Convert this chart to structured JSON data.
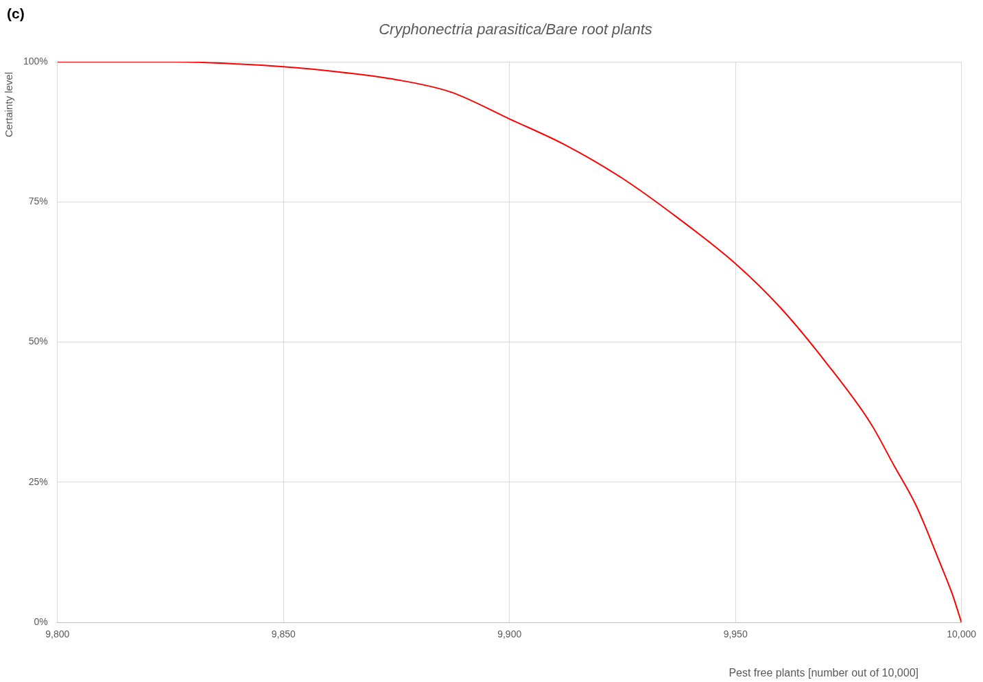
{
  "chart_data": {
    "type": "line",
    "title": "Cryphonectria parasitica/Bare root plants",
    "xlabel": "Pest free plants [number out of 10,000]",
    "ylabel": "Certainty level",
    "annotations": [
      "(c)"
    ],
    "x": [
      9800,
      9825,
      9840,
      9850,
      9862,
      9875,
      9887,
      9900,
      9912,
      9925,
      9937,
      9950,
      9960,
      9970,
      9980,
      9985,
      9990,
      9995,
      9998,
      10000
    ],
    "series": [
      {
        "color": "#ff0000",
        "values": [
          100,
          100,
          99.6,
          99.1,
          98.2,
          96.8,
          94.6,
          89.8,
          85.3,
          79.2,
          72.3,
          64.0,
          56.1,
          46.4,
          35.4,
          28.1,
          20.8,
          11.1,
          5,
          0
        ]
      }
    ],
    "xlim": [
      9800,
      10000
    ],
    "ylim": [
      0,
      100
    ],
    "xticks": [
      {
        "value": 9800,
        "label": "9,800"
      },
      {
        "value": 9850,
        "label": "9,850"
      },
      {
        "value": 9900,
        "label": "9,900"
      },
      {
        "value": 9950,
        "label": "9,950"
      },
      {
        "value": 10000,
        "label": "10,000"
      }
    ],
    "yticks": [
      {
        "value": 0,
        "label": "0%"
      },
      {
        "value": 25,
        "label": "25%"
      },
      {
        "value": 50,
        "label": "50%"
      },
      {
        "value": 75,
        "label": "75%"
      },
      {
        "value": 100,
        "label": "100%"
      }
    ],
    "grid": true,
    "legend": false,
    "marker": "none",
    "line_style": "solid"
  }
}
